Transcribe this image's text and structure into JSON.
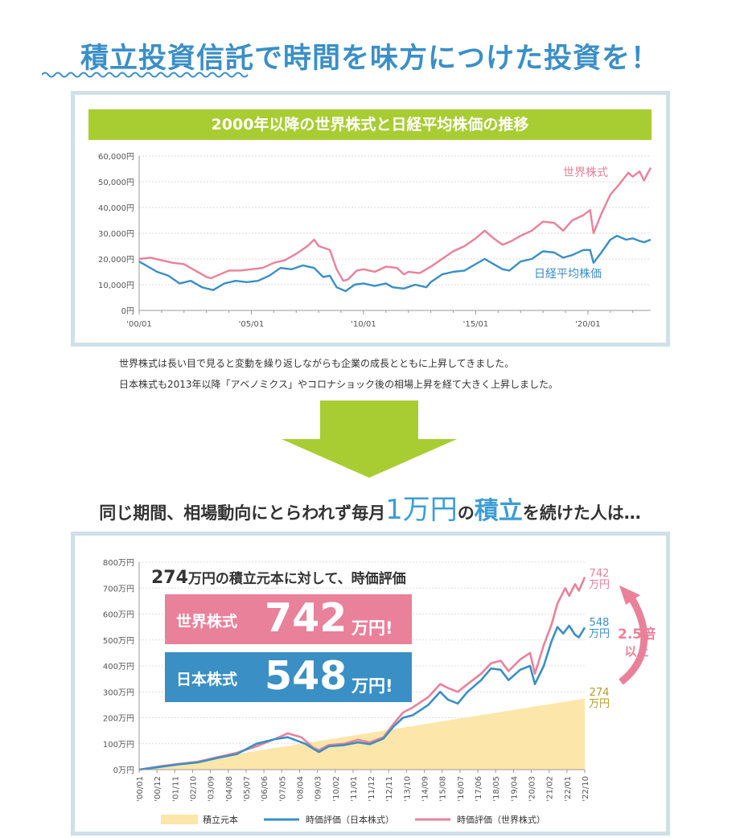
{
  "headline": "積立投資信託で時間を味方につけた投資を！",
  "chart1_title": "2000年以降の世界株式と日経平均株価の推移",
  "description": [
    "世界株式は長い目で見ると変動を繰り返しながらも企業の成長とともに上昇してきました。",
    "日本株式も2013年以降「アベノミクス」やコロナショック後の相場上昇を経て大きく上昇しました。"
  ],
  "subheading": {
    "prefix": "同じ期間、相場動向にとらわれず毎月",
    "amount": "1万円",
    "mid": "の",
    "emphasis": "積立",
    "suffix": "を続けた人は…"
  },
  "annotation": {
    "amount": "274",
    "rest": "万円の積立元本に対して、時価評価"
  },
  "box_world": {
    "label": "世界株式",
    "value": "742",
    "unit": "万円!"
  },
  "box_japan": {
    "label": "日本株式",
    "value": "548",
    "unit": "万円!"
  },
  "end_labels": {
    "world": {
      "value": "742",
      "unit": "万円"
    },
    "japan": {
      "value": "548",
      "unit": "万円"
    },
    "principal": {
      "value": "274",
      "unit": "万円"
    }
  },
  "multiplier": {
    "line1": "2.5倍",
    "line2": "以上"
  },
  "colors": {
    "world": "#e9819a",
    "japan": "#3a8fc4",
    "principal": "#fce6a9",
    "accent_green": "#a8cd32",
    "headline": "#3b8fc7"
  },
  "chart_data": [
    {
      "type": "line",
      "title": "2000年以降の世界株式と日経平均株価の推移",
      "ylim": [
        0,
        60000
      ],
      "yticks": [
        "0円",
        "10,000円",
        "20,000円",
        "30,000円",
        "40,000円",
        "50,000円",
        "60,000円"
      ],
      "xlim": [
        2000.0,
        2022.8
      ],
      "xticks": [
        {
          "x": 2000,
          "label": "'00/01"
        },
        {
          "x": 2005,
          "label": "'05/01"
        },
        {
          "x": 2010,
          "label": "'10/01"
        },
        {
          "x": 2015,
          "label": "'15/01"
        },
        {
          "x": 2020,
          "label": "'20/01"
        }
      ],
      "series": [
        {
          "name": "世界株式",
          "color": "#e9819a",
          "points": [
            [
              2000.0,
              20000
            ],
            [
              2000.5,
              20500
            ],
            [
              2001.0,
              19500
            ],
            [
              2001.5,
              18500
            ],
            [
              2002.0,
              18000
            ],
            [
              2002.5,
              15500
            ],
            [
              2003.0,
              13000
            ],
            [
              2003.2,
              12500
            ],
            [
              2003.6,
              14000
            ],
            [
              2004.0,
              15500
            ],
            [
              2004.5,
              15500
            ],
            [
              2005.0,
              16000
            ],
            [
              2005.5,
              16500
            ],
            [
              2006.0,
              18500
            ],
            [
              2006.5,
              19500
            ],
            [
              2007.0,
              22000
            ],
            [
              2007.5,
              25000
            ],
            [
              2007.8,
              27500
            ],
            [
              2008.0,
              25000
            ],
            [
              2008.5,
              23500
            ],
            [
              2008.8,
              16000
            ],
            [
              2009.1,
              11500
            ],
            [
              2009.3,
              12000
            ],
            [
              2009.7,
              15500
            ],
            [
              2010.0,
              16000
            ],
            [
              2010.5,
              15000
            ],
            [
              2011.0,
              17000
            ],
            [
              2011.5,
              16500
            ],
            [
              2011.8,
              14000
            ],
            [
              2012.0,
              15000
            ],
            [
              2012.5,
              14500
            ],
            [
              2013.0,
              17000
            ],
            [
              2013.5,
              20000
            ],
            [
              2014.0,
              23000
            ],
            [
              2014.5,
              25000
            ],
            [
              2015.0,
              28000
            ],
            [
              2015.4,
              31000
            ],
            [
              2015.8,
              28000
            ],
            [
              2016.2,
              25500
            ],
            [
              2016.6,
              27000
            ],
            [
              2017.0,
              29000
            ],
            [
              2017.5,
              31000
            ],
            [
              2018.0,
              34500
            ],
            [
              2018.5,
              34000
            ],
            [
              2018.9,
              31000
            ],
            [
              2019.3,
              35000
            ],
            [
              2019.8,
              37000
            ],
            [
              2020.1,
              39000
            ],
            [
              2020.25,
              30000
            ],
            [
              2020.6,
              37500
            ],
            [
              2021.0,
              45000
            ],
            [
              2021.4,
              49000
            ],
            [
              2021.8,
              53500
            ],
            [
              2022.0,
              52000
            ],
            [
              2022.3,
              54000
            ],
            [
              2022.5,
              50500
            ],
            [
              2022.8,
              55500
            ]
          ]
        },
        {
          "name": "日経平均株価",
          "color": "#3a8fc4",
          "points": [
            [
              2000.0,
              19000
            ],
            [
              2000.3,
              17500
            ],
            [
              2000.8,
              15000
            ],
            [
              2001.3,
              13500
            ],
            [
              2001.8,
              10500
            ],
            [
              2002.3,
              11500
            ],
            [
              2002.8,
              9000
            ],
            [
              2003.3,
              7900
            ],
            [
              2003.8,
              10500
            ],
            [
              2004.3,
              11500
            ],
            [
              2004.8,
              11000
            ],
            [
              2005.3,
              11500
            ],
            [
              2005.8,
              13500
            ],
            [
              2006.3,
              16500
            ],
            [
              2006.8,
              16000
            ],
            [
              2007.3,
              17500
            ],
            [
              2007.8,
              16500
            ],
            [
              2008.2,
              13000
            ],
            [
              2008.5,
              13500
            ],
            [
              2008.8,
              9000
            ],
            [
              2009.2,
              7500
            ],
            [
              2009.6,
              10000
            ],
            [
              2010.0,
              10500
            ],
            [
              2010.5,
              9500
            ],
            [
              2011.0,
              10500
            ],
            [
              2011.3,
              9000
            ],
            [
              2011.8,
              8500
            ],
            [
              2012.3,
              10000
            ],
            [
              2012.8,
              9000
            ],
            [
              2013.0,
              11000
            ],
            [
              2013.5,
              14000
            ],
            [
              2014.0,
              15000
            ],
            [
              2014.5,
              15500
            ],
            [
              2014.9,
              17500
            ],
            [
              2015.4,
              20000
            ],
            [
              2015.8,
              18000
            ],
            [
              2016.2,
              16000
            ],
            [
              2016.5,
              15500
            ],
            [
              2017.0,
              19000
            ],
            [
              2017.5,
              20000
            ],
            [
              2018.0,
              23000
            ],
            [
              2018.5,
              22500
            ],
            [
              2018.9,
              20500
            ],
            [
              2019.3,
              21500
            ],
            [
              2019.8,
              23500
            ],
            [
              2020.1,
              23500
            ],
            [
              2020.25,
              18500
            ],
            [
              2020.6,
              22500
            ],
            [
              2021.0,
              27500
            ],
            [
              2021.3,
              29000
            ],
            [
              2021.7,
              27500
            ],
            [
              2022.0,
              28000
            ],
            [
              2022.3,
              27000
            ],
            [
              2022.5,
              26500
            ],
            [
              2022.8,
              27500
            ]
          ]
        }
      ],
      "series_labels": {
        "world": "世界株式",
        "japan": "日経平均株価"
      }
    },
    {
      "type": "area",
      "ylim": [
        0,
        800
      ],
      "yticks": [
        "0万円",
        "100万円",
        "200万円",
        "300万円",
        "400万円",
        "500万円",
        "600万円",
        "700万円",
        "800万円"
      ],
      "xlim": [
        2000.0,
        2022.8
      ],
      "xticks": [
        "'00/01",
        "'00/12",
        "'01/11",
        "'02/10",
        "'03/09",
        "'04/08",
        "'05/07",
        "'06/06",
        "'07/05",
        "'08/04",
        "'09/03",
        "'10/02",
        "'11/01",
        "'11/12",
        "'12/11",
        "'13/10",
        "'14/09",
        "'15/08",
        "'16/07",
        "'17/06",
        "'18/05",
        "'19/04",
        "'20/03",
        "'21/02",
        "'22/01",
        "'22/10"
      ],
      "legend": [
        "積立元本",
        "時価評価（日本株式）",
        "時価評価（世界株式）"
      ],
      "series": [
        {
          "name": "積立元本",
          "color": "#fce6a9",
          "points": [
            [
              2000.0,
              0
            ],
            [
              2022.8,
              274
            ]
          ]
        },
        {
          "name": "時価評価（日本株式）",
          "color": "#3a8fc4",
          "points": [
            [
              2000.0,
              0
            ],
            [
              2001.0,
              10
            ],
            [
              2002.0,
              20
            ],
            [
              2003.0,
              28
            ],
            [
              2004.0,
              45
            ],
            [
              2005.0,
              60
            ],
            [
              2006.0,
              100
            ],
            [
              2007.0,
              118
            ],
            [
              2007.6,
              125
            ],
            [
              2008.5,
              100
            ],
            [
              2009.2,
              68
            ],
            [
              2009.7,
              90
            ],
            [
              2010.5,
              95
            ],
            [
              2011.2,
              105
            ],
            [
              2011.8,
              98
            ],
            [
              2012.5,
              120
            ],
            [
              2013.0,
              165
            ],
            [
              2013.5,
              200
            ],
            [
              2014.0,
              210
            ],
            [
              2014.8,
              250
            ],
            [
              2015.4,
              300
            ],
            [
              2015.8,
              270
            ],
            [
              2016.3,
              255
            ],
            [
              2016.8,
              300
            ],
            [
              2017.5,
              345
            ],
            [
              2018.0,
              390
            ],
            [
              2018.5,
              385
            ],
            [
              2018.9,
              345
            ],
            [
              2019.5,
              385
            ],
            [
              2020.0,
              400
            ],
            [
              2020.25,
              330
            ],
            [
              2020.7,
              400
            ],
            [
              2021.1,
              495
            ],
            [
              2021.4,
              550
            ],
            [
              2021.7,
              525
            ],
            [
              2022.0,
              555
            ],
            [
              2022.3,
              520
            ],
            [
              2022.5,
              510
            ],
            [
              2022.8,
              548
            ]
          ]
        },
        {
          "name": "時価評価（世界株式）",
          "color": "#e9819a",
          "points": [
            [
              2000.0,
              0
            ],
            [
              2001.0,
              12
            ],
            [
              2002.0,
              22
            ],
            [
              2003.0,
              30
            ],
            [
              2004.0,
              48
            ],
            [
              2005.0,
              65
            ],
            [
              2006.0,
              90
            ],
            [
              2007.0,
              120
            ],
            [
              2007.6,
              140
            ],
            [
              2008.3,
              125
            ],
            [
              2008.9,
              85
            ],
            [
              2009.2,
              75
            ],
            [
              2009.7,
              95
            ],
            [
              2010.5,
              100
            ],
            [
              2011.2,
              115
            ],
            [
              2011.8,
              105
            ],
            [
              2012.5,
              125
            ],
            [
              2013.0,
              175
            ],
            [
              2013.5,
              220
            ],
            [
              2014.0,
              240
            ],
            [
              2014.8,
              280
            ],
            [
              2015.4,
              330
            ],
            [
              2015.8,
              315
            ],
            [
              2016.3,
              300
            ],
            [
              2016.8,
              330
            ],
            [
              2017.5,
              370
            ],
            [
              2018.0,
              410
            ],
            [
              2018.5,
              420
            ],
            [
              2018.9,
              380
            ],
            [
              2019.5,
              425
            ],
            [
              2020.0,
              450
            ],
            [
              2020.25,
              370
            ],
            [
              2020.7,
              480
            ],
            [
              2021.1,
              560
            ],
            [
              2021.4,
              640
            ],
            [
              2021.8,
              700
            ],
            [
              2022.0,
              670
            ],
            [
              2022.3,
              715
            ],
            [
              2022.5,
              690
            ],
            [
              2022.8,
              742
            ]
          ]
        }
      ]
    }
  ]
}
